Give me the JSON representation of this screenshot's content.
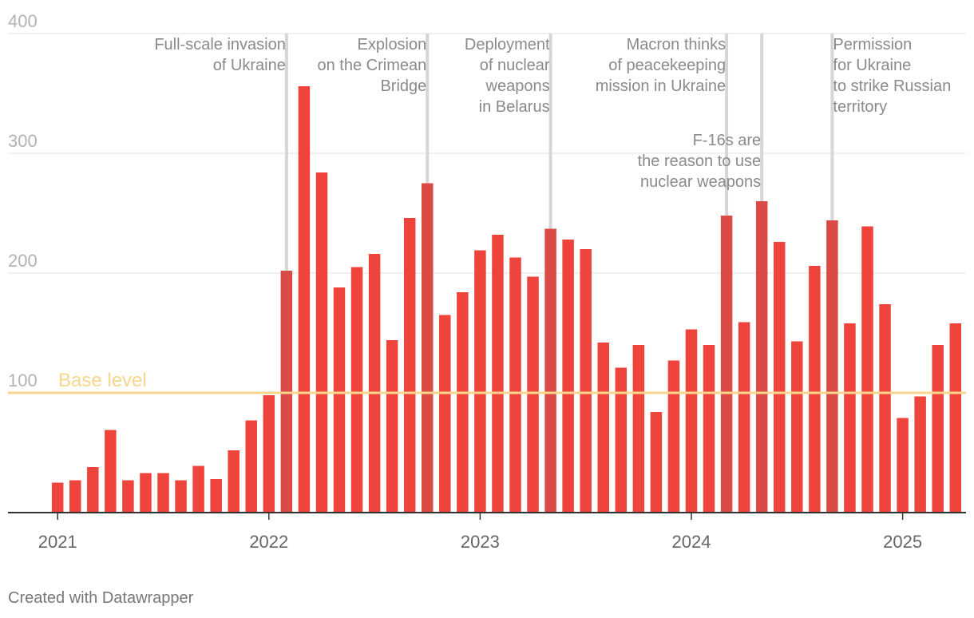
{
  "chart_data": {
    "type": "bar",
    "title": "",
    "xlabel": "",
    "ylabel": "",
    "ylim": [
      0,
      400
    ],
    "yticks": [
      "100",
      "200",
      "300",
      "400"
    ],
    "xticks": [
      "2021",
      "2022",
      "2023",
      "2024",
      "2025"
    ],
    "start_month": "2021-01",
    "values": [
      25,
      27,
      38,
      69,
      27,
      33,
      33,
      27,
      39,
      28,
      52,
      77,
      98,
      202,
      356,
      284,
      188,
      205,
      216,
      144,
      246,
      275,
      165,
      184,
      219,
      232,
      213,
      197,
      237,
      228,
      220,
      142,
      121,
      140,
      84,
      127,
      153,
      140,
      248,
      159,
      260,
      226,
      143,
      206,
      244,
      158,
      239,
      174,
      79,
      97,
      140,
      158
    ],
    "highlighted_indices": [
      13,
      21,
      28,
      38,
      40,
      44
    ],
    "bar_color": "#ee443b",
    "highlight_color": "#d94b44",
    "base_level": {
      "value": 100,
      "label": "Base level",
      "color": "#f8d68d"
    },
    "annotations": [
      {
        "index": 13,
        "lines": [
          "Full-scale invasion",
          "of Ukraine"
        ]
      },
      {
        "index": 21,
        "lines": [
          "Explosion",
          "on the Crimean",
          "Bridge"
        ]
      },
      {
        "index": 28,
        "lines": [
          "Deployment",
          "of nuclear",
          "weapons",
          "in Belarus"
        ]
      },
      {
        "index": 38,
        "lines": [
          "Macron thinks",
          "of peacekeeping",
          "mission in Ukraine"
        ]
      },
      {
        "index": 40,
        "lines": [
          "F-16s are",
          "the reason to use",
          "nuclear weapons"
        ]
      },
      {
        "index": 44,
        "lines": [
          "Permission",
          "for Ukraine",
          "to strike Russian",
          "territory"
        ]
      }
    ]
  },
  "footer": {
    "credit": "Created with Datawrapper"
  }
}
